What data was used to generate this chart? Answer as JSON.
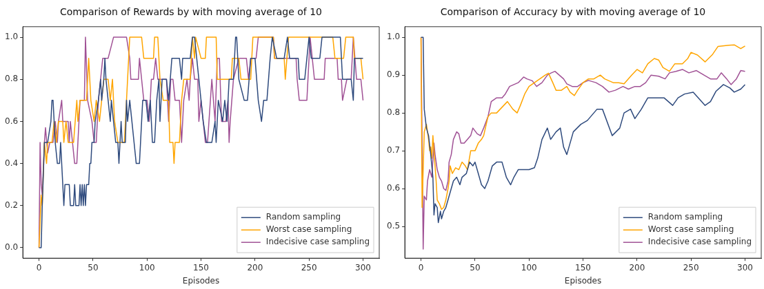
{
  "chart_data": [
    {
      "type": "line",
      "title": "Comparison of Rewards by with moving average of 10",
      "xlabel": "Episodes",
      "xlim": [
        -15,
        315
      ],
      "xticks": [
        0,
        50,
        100,
        150,
        200,
        250,
        300
      ],
      "ylim": [
        -0.05,
        1.05
      ],
      "yticks": [
        {
          "value": 0,
          "label": "0.0"
        },
        {
          "value": 0.2,
          "label": "0.2"
        },
        {
          "value": 0.4,
          "label": "0.4"
        },
        {
          "value": 0.6,
          "label": "0.6"
        },
        {
          "value": 0.8,
          "label": "0.8"
        },
        {
          "value": 1,
          "label": "1.0"
        }
      ],
      "grid": false,
      "legend": "bottom right",
      "marker": "none",
      "line_style": "solid",
      "series": [
        {
          "name": "Random sampling",
          "color": "#2e4a7d",
          "x": [
            0,
            2,
            3,
            5,
            8,
            11,
            12,
            13,
            15,
            17,
            19,
            20,
            22,
            23,
            24,
            28,
            29,
            32,
            33,
            34,
            37,
            38,
            39,
            40,
            41,
            42,
            43,
            44,
            46,
            47,
            48,
            49,
            51,
            52,
            55,
            57,
            58,
            60,
            61,
            62,
            64,
            66,
            67,
            69,
            71,
            73,
            74,
            75,
            76,
            77,
            80,
            81,
            82,
            84,
            86,
            88,
            90,
            93,
            94,
            96,
            99,
            101,
            103,
            105,
            107,
            109,
            111,
            112,
            114,
            118,
            120,
            123,
            130,
            132,
            133,
            140,
            142,
            144,
            146,
            150,
            152,
            155,
            160,
            163,
            164,
            166,
            170,
            172,
            174,
            176,
            180,
            182,
            183,
            185,
            190,
            193,
            196,
            200,
            203,
            206,
            208,
            211,
            214,
            216,
            220,
            227,
            230,
            232,
            240,
            241,
            246,
            248,
            250,
            252,
            260,
            262,
            279,
            281,
            289,
            291,
            292,
            300
          ],
          "values": [
            0,
            0,
            0.2,
            0.5,
            0.5,
            0.6,
            0.7,
            0.7,
            0.5,
            0.4,
            0.4,
            0.5,
            0.3,
            0.2,
            0.3,
            0.3,
            0.2,
            0.2,
            0.3,
            0.2,
            0.2,
            0.3,
            0.2,
            0.3,
            0.2,
            0.3,
            0.2,
            0.3,
            0.3,
            0.4,
            0.4,
            0.5,
            0.5,
            0.6,
            0.7,
            0.8,
            0.7,
            0.8,
            0.9,
            0.8,
            0.7,
            0.6,
            0.7,
            0.6,
            0.5,
            0.5,
            0.4,
            0.5,
            0.6,
            0.5,
            0.5,
            0.7,
            0.6,
            0.7,
            0.6,
            0.5,
            0.4,
            0.4,
            0.5,
            0.7,
            0.7,
            0.6,
            0.7,
            0.5,
            0.5,
            0.7,
            0.8,
            0.6,
            0.8,
            0.8,
            0.7,
            0.9,
            0.9,
            0.8,
            0.9,
            0.9,
            1,
            1,
            0.9,
            0.7,
            0.6,
            0.5,
            0.5,
            0.6,
            0.5,
            0.7,
            0.6,
            0.7,
            0.6,
            0.8,
            0.8,
            1,
            1,
            0.8,
            0.7,
            0.7,
            0.9,
            0.9,
            0.7,
            0.6,
            0.7,
            0.7,
            0.9,
            1,
            0.9,
            0.9,
            1,
            0.9,
            0.9,
            0.8,
            0.8,
            0.9,
            1,
            0.9,
            0.9,
            1,
            1,
            0.8,
            0.8,
            0.7,
            0.9,
            0.9
          ]
        },
        {
          "name": "Worst case sampling",
          "color": "#ffa500",
          "x": [
            0,
            2,
            3,
            5,
            7,
            8,
            12,
            14,
            16,
            18,
            22,
            23,
            25,
            27,
            32,
            35,
            36,
            38,
            44,
            46,
            48,
            51,
            53,
            56,
            58,
            60,
            64,
            66,
            68,
            70,
            73,
            79,
            82,
            84,
            95,
            97,
            106,
            107,
            110,
            112,
            115,
            120,
            121,
            124,
            125,
            126,
            130,
            132,
            134,
            140,
            142,
            144,
            145,
            150,
            154,
            155,
            164,
            165,
            178,
            179,
            185,
            187,
            196,
            197,
            198,
            217,
            218,
            227,
            228,
            231,
            272,
            274,
            282,
            284,
            291,
            292,
            298,
            300
          ],
          "values": [
            0,
            0.25,
            0.2,
            0.5,
            0.4,
            0.5,
            0.5,
            0.6,
            0.5,
            0.6,
            0.6,
            0.5,
            0.6,
            0.5,
            0.5,
            0.7,
            0.6,
            0.7,
            0.7,
            0.9,
            0.7,
            0.6,
            0.7,
            0.6,
            0.7,
            0.8,
            0.8,
            0.7,
            0.8,
            0.6,
            0.5,
            0.5,
            0.8,
            1,
            1,
            0.9,
            0.9,
            1,
            1,
            0.8,
            0.7,
            0.7,
            0.5,
            0.5,
            0.4,
            0.5,
            0.5,
            0.7,
            0.8,
            0.8,
            1,
            0.9,
            1,
            0.9,
            0.9,
            1,
            1,
            0.8,
            0.8,
            0.9,
            0.9,
            0.8,
            0.8,
            0.9,
            1,
            1,
            0.9,
            0.9,
            0.8,
            1,
            1,
            0.9,
            0.9,
            1,
            1,
            0.9,
            0.9,
            0.8
          ]
        },
        {
          "name": "Indecisive case sampling",
          "color": "#a05195",
          "x": [
            0,
            1,
            2,
            3,
            5,
            6,
            8,
            10,
            13,
            15,
            17,
            18,
            21,
            22,
            27,
            28,
            29,
            31,
            33,
            35,
            36,
            38,
            42,
            43,
            45,
            49,
            51,
            53,
            55,
            57,
            59,
            64,
            69,
            81,
            84,
            85,
            92,
            93,
            95,
            97,
            100,
            102,
            104,
            106,
            108,
            110,
            118,
            120,
            122,
            124,
            126,
            130,
            132,
            134,
            137,
            139,
            140,
            142,
            144,
            147,
            148,
            150,
            152,
            154,
            156,
            160,
            163,
            165,
            167,
            169,
            173,
            175,
            176,
            177,
            180,
            185,
            192,
            194,
            196,
            201,
            203,
            217,
            218,
            238,
            239,
            241,
            248,
            249,
            251,
            255,
            264,
            265,
            276,
            277,
            280,
            281,
            285,
            289,
            291,
            294,
            298,
            300
          ],
          "values": [
            0,
            0.5,
            0.3,
            0.25,
            0.5,
            0.57,
            0.45,
            0.5,
            0.5,
            0.6,
            0.5,
            0.6,
            0.7,
            0.6,
            0.6,
            0.5,
            0.6,
            0.5,
            0.4,
            0.4,
            0.5,
            0.7,
            0.7,
            1,
            0.7,
            0.6,
            0.5,
            0.5,
            0.7,
            0.8,
            0.9,
            0.9,
            1,
            1,
            0.9,
            0.8,
            0.8,
            0.9,
            0.8,
            0.7,
            0.7,
            0.6,
            0.8,
            0.8,
            0.9,
            0.8,
            0.8,
            0.6,
            0.8,
            0.8,
            0.7,
            0.7,
            0.5,
            0.7,
            0.8,
            0.7,
            0.8,
            0.9,
            0.8,
            0.8,
            0.6,
            0.7,
            0.6,
            0.5,
            0.5,
            0.8,
            0.6,
            0.9,
            0.9,
            0.6,
            0.6,
            0.7,
            0.5,
            0.6,
            0.8,
            0.9,
            0.9,
            0.8,
            0.9,
            0.9,
            1,
            1,
            0.9,
            0.9,
            0.8,
            0.7,
            0.7,
            0.8,
            1,
            0.8,
            0.8,
            0.9,
            0.9,
            0.8,
            0.8,
            0.7,
            0.8,
            0.8,
            1,
            0.8,
            0.8,
            0.7
          ]
        }
      ]
    },
    {
      "type": "line",
      "title": "Comparison of Accuracy by with moving average of 10",
      "xlabel": "Episodes",
      "xlim": [
        -15,
        315
      ],
      "xticks": [
        0,
        50,
        100,
        150,
        200,
        250,
        300
      ],
      "ylim": [
        0.416,
        1.028
      ],
      "yticks": [
        {
          "value": 0.5,
          "label": "0.5"
        },
        {
          "value": 0.6,
          "label": "0.6"
        },
        {
          "value": 0.7,
          "label": "0.7"
        },
        {
          "value": 0.8,
          "label": "0.8"
        },
        {
          "value": 0.9,
          "label": "0.9"
        },
        {
          "value": 1,
          "label": "1.0"
        }
      ],
      "grid": false,
      "legend": "bottom right",
      "marker": "none",
      "line_style": "solid",
      "series": [
        {
          "name": "Random sampling",
          "color": "#2e4a7d",
          "x": [
            0,
            2,
            3,
            5,
            7,
            9,
            11,
            12,
            13,
            15,
            16,
            18,
            19,
            21,
            23,
            25,
            27,
            30,
            33,
            36,
            38,
            42,
            45,
            48,
            50,
            53,
            56,
            59,
            62,
            66,
            70,
            75,
            79,
            83,
            86,
            90,
            95,
            100,
            105,
            108,
            112,
            117,
            120,
            125,
            129,
            132,
            135,
            141,
            148,
            154,
            163,
            168,
            177,
            184,
            188,
            194,
            198,
            204,
            210,
            217,
            225,
            233,
            238,
            244,
            252,
            263,
            268,
            273,
            280,
            286,
            290,
            296,
            300
          ],
          "values": [
            1,
            1,
            0.81,
            0.76,
            0.74,
            0.69,
            0.63,
            0.53,
            0.56,
            0.55,
            0.51,
            0.54,
            0.52,
            0.54,
            0.55,
            0.57,
            0.59,
            0.62,
            0.63,
            0.61,
            0.63,
            0.64,
            0.67,
            0.66,
            0.67,
            0.64,
            0.61,
            0.6,
            0.62,
            0.66,
            0.67,
            0.67,
            0.63,
            0.61,
            0.63,
            0.65,
            0.65,
            0.65,
            0.655,
            0.68,
            0.73,
            0.76,
            0.73,
            0.75,
            0.76,
            0.71,
            0.69,
            0.75,
            0.77,
            0.78,
            0.81,
            0.81,
            0.74,
            0.76,
            0.8,
            0.81,
            0.785,
            0.81,
            0.84,
            0.84,
            0.84,
            0.82,
            0.84,
            0.85,
            0.855,
            0.82,
            0.83,
            0.857,
            0.875,
            0.866,
            0.855,
            0.863,
            0.875
          ]
        },
        {
          "name": "Worst case sampling",
          "color": "#ffa500",
          "x": [
            0,
            1,
            3,
            5,
            7,
            8,
            9,
            10,
            11,
            12,
            14,
            15,
            17,
            19,
            21,
            23,
            25,
            26,
            27,
            29,
            32,
            35,
            38,
            41,
            43,
            46,
            50,
            53,
            56,
            58,
            62,
            65,
            70,
            75,
            80,
            85,
            89,
            92,
            96,
            100,
            105,
            110,
            115,
            118,
            122,
            125,
            130,
            135,
            138,
            142,
            145,
            150,
            155,
            160,
            166,
            170,
            178,
            183,
            188,
            195,
            200,
            205,
            210,
            216,
            220,
            224,
            230,
            235,
            242,
            247,
            250,
            256,
            263,
            270,
            275,
            285,
            290,
            296,
            300
          ],
          "values": [
            1,
            0.55,
            0.75,
            0.77,
            0.73,
            0.7,
            0.71,
            0.68,
            0.74,
            0.7,
            0.62,
            0.57,
            0.56,
            0.545,
            0.55,
            0.57,
            0.6,
            0.62,
            0.66,
            0.64,
            0.655,
            0.65,
            0.67,
            0.66,
            0.65,
            0.7,
            0.7,
            0.72,
            0.73,
            0.74,
            0.79,
            0.8,
            0.8,
            0.815,
            0.83,
            0.81,
            0.8,
            0.82,
            0.85,
            0.87,
            0.88,
            0.89,
            0.9,
            0.905,
            0.88,
            0.86,
            0.86,
            0.87,
            0.855,
            0.846,
            0.86,
            0.88,
            0.89,
            0.89,
            0.9,
            0.89,
            0.88,
            0.88,
            0.877,
            0.9,
            0.915,
            0.906,
            0.93,
            0.944,
            0.94,
            0.92,
            0.91,
            0.93,
            0.93,
            0.944,
            0.96,
            0.953,
            0.935,
            0.955,
            0.976,
            0.979,
            0.98,
            0.97,
            0.977
          ]
        },
        {
          "name": "Indecisive case sampling",
          "color": "#a05195",
          "x": [
            0,
            2,
            3,
            5,
            6,
            8,
            10,
            12,
            13,
            15,
            17,
            19,
            21,
            23,
            25,
            26,
            28,
            30,
            33,
            35,
            37,
            40,
            43,
            46,
            48,
            52,
            55,
            58,
            62,
            65,
            70,
            75,
            78,
            82,
            86,
            90,
            95,
            98,
            103,
            107,
            112,
            117,
            120,
            124,
            128,
            132,
            135,
            140,
            145,
            150,
            155,
            162,
            168,
            174,
            180,
            187,
            192,
            198,
            203,
            208,
            213,
            220,
            226,
            230,
            236,
            242,
            248,
            255,
            262,
            268,
            274,
            278,
            283,
            287,
            292,
            296,
            300
          ],
          "values": [
            1,
            0.44,
            0.58,
            0.57,
            0.62,
            0.65,
            0.63,
            0.72,
            0.69,
            0.65,
            0.63,
            0.62,
            0.6,
            0.595,
            0.62,
            0.67,
            0.69,
            0.73,
            0.75,
            0.745,
            0.72,
            0.72,
            0.73,
            0.74,
            0.76,
            0.745,
            0.74,
            0.76,
            0.79,
            0.83,
            0.84,
            0.84,
            0.85,
            0.87,
            0.875,
            0.88,
            0.895,
            0.89,
            0.885,
            0.87,
            0.88,
            0.9,
            0.905,
            0.91,
            0.9,
            0.89,
            0.877,
            0.87,
            0.87,
            0.88,
            0.886,
            0.88,
            0.87,
            0.855,
            0.86,
            0.87,
            0.863,
            0.87,
            0.87,
            0.88,
            0.9,
            0.897,
            0.89,
            0.906,
            0.91,
            0.915,
            0.906,
            0.912,
            0.9,
            0.89,
            0.89,
            0.906,
            0.89,
            0.875,
            0.89,
            0.912,
            0.91
          ]
        }
      ]
    }
  ]
}
